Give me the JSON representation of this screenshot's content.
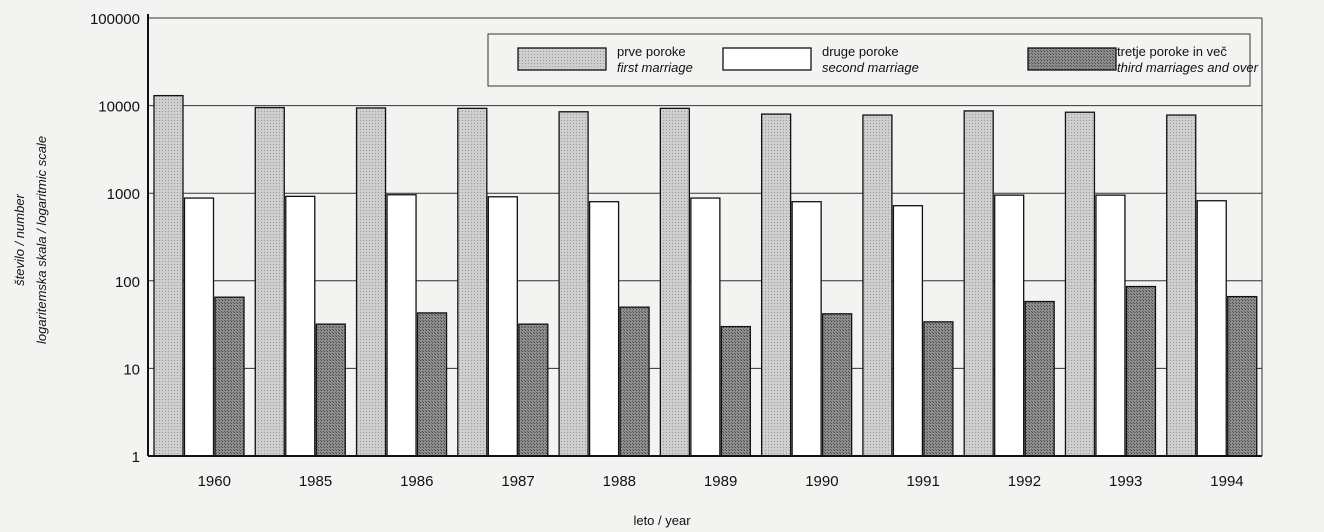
{
  "chart_data": {
    "type": "bar",
    "categories": [
      "1960",
      "1985",
      "1986",
      "1987",
      "1988",
      "1989",
      "1990",
      "1991",
      "1992",
      "1993",
      "1994"
    ],
    "series": [
      {
        "name": "prve poroke",
        "name_en": "first marriage",
        "values": [
          13000,
          9500,
          9400,
          9300,
          8500,
          9300,
          8000,
          7800,
          8700,
          8400,
          7800
        ],
        "color": "#c8c8c8"
      },
      {
        "name": "druge poroke",
        "name_en": "second marriage",
        "values": [
          880,
          920,
          960,
          910,
          800,
          880,
          800,
          720,
          950,
          950,
          820
        ],
        "color": "#ffffff"
      },
      {
        "name": "tretje poroke in več",
        "name_en": "third marriages and over",
        "values": [
          65,
          32,
          43,
          32,
          50,
          30,
          42,
          34,
          58,
          86,
          66
        ],
        "color": "#8a8a8a"
      }
    ],
    "yscale": "log",
    "ylim": [
      1,
      100000
    ],
    "yticks": [
      1,
      10,
      100,
      1000,
      10000,
      100000
    ],
    "ytick_labels": [
      "1",
      "10",
      "100",
      "1000",
      "10000",
      "100000"
    ],
    "ylabel_line1": "število / number",
    "ylabel_line2": "logaritemska skala / logaritmic scale",
    "xlabel": "leto / year",
    "grid": true,
    "legend_position": "top-right"
  }
}
